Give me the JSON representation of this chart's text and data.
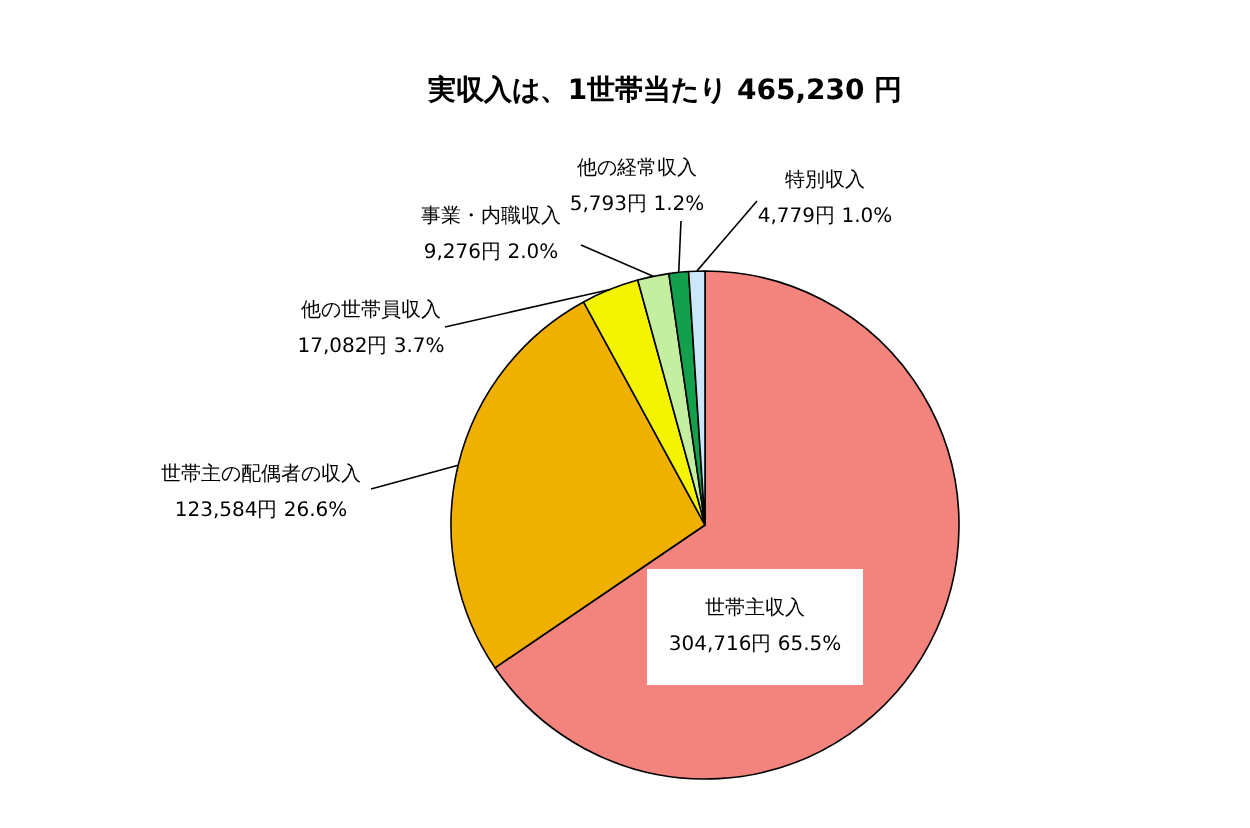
{
  "chart_data": {
    "type": "pie",
    "title": "実収入は、1世帯当たり 465,230 円",
    "categories": [
      "世帯主収入",
      "世帯主の配偶者の収入",
      "他の世帯員収入",
      "事業・内職収入",
      "他の経常収入",
      "特別収入"
    ],
    "values": [
      304716,
      123584,
      17082,
      9276,
      5793,
      4779
    ],
    "colors": [
      "#f2837d",
      "#f0b000",
      "#f4f400",
      "#c4eea0",
      "#13a04c",
      "#cce8f8"
    ],
    "value_labels": [
      "304,716円 65.5%",
      "123,584円 26.6%",
      "17,082円 3.7%",
      "9,276円 2.0%",
      "5,793円 1.2%",
      "4,779円 1.0%"
    ]
  }
}
